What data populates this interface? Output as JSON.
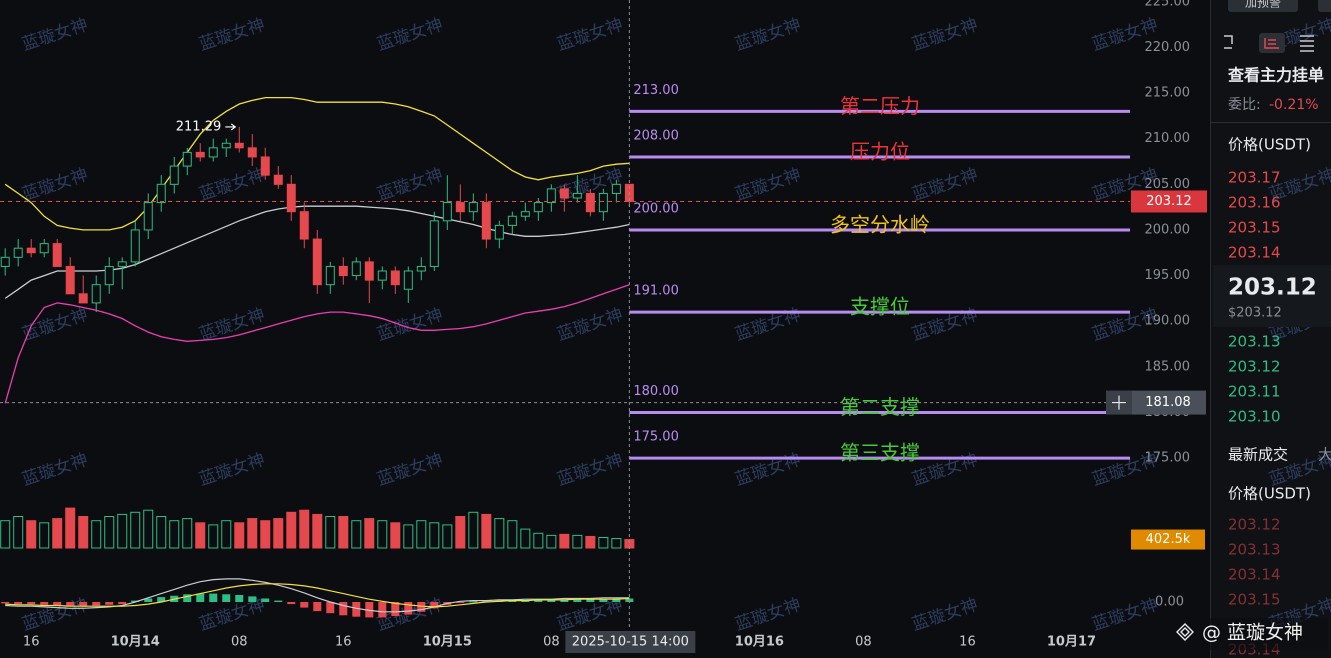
{
  "chart_data": {
    "type": "candlestick",
    "x": [
      -10,
      -9,
      -8,
      -7,
      -6,
      -5,
      -4,
      -3,
      -2,
      -1,
      0,
      1,
      2,
      3,
      4,
      5,
      6,
      7,
      8,
      9,
      10,
      11,
      12,
      13,
      14,
      15,
      16,
      17,
      18,
      19,
      20,
      21,
      22,
      23,
      24,
      25,
      26,
      27,
      28,
      29,
      30,
      31,
      32,
      33,
      34,
      35,
      36,
      37,
      38
    ],
    "open": [
      196,
      197,
      198,
      197.5,
      198.5,
      196,
      193,
      192,
      194,
      196,
      196.5,
      200,
      203,
      205,
      207,
      208.5,
      208,
      209,
      209.5,
      209,
      208,
      206,
      205,
      202,
      199,
      194,
      196,
      195,
      196.5,
      194.5,
      195.5,
      193.5,
      195.5,
      196,
      201,
      203,
      202,
      203,
      199,
      200.5,
      201.5,
      202,
      203,
      204.5,
      203.5,
      204,
      202,
      204,
      205
    ],
    "high": [
      198,
      199,
      199,
      199,
      199,
      197,
      195,
      195,
      197,
      197,
      201,
      204,
      206,
      208,
      209,
      209.5,
      210,
      210,
      211.29,
      210.5,
      209,
      207,
      206,
      203,
      200,
      196.5,
      197,
      197,
      197,
      196,
      196,
      196,
      197,
      202,
      206,
      205,
      204,
      204,
      201,
      202,
      203,
      203.5,
      205,
      205,
      206,
      204.5,
      204.5,
      205.5,
      205
    ],
    "low": [
      195,
      196,
      197,
      197,
      196,
      193,
      192,
      191,
      193,
      193.5,
      196,
      199,
      202,
      204,
      206,
      207.5,
      207.5,
      208,
      208.5,
      207,
      205.5,
      204.5,
      201,
      198,
      193,
      193,
      194,
      194.5,
      192,
      193.5,
      193,
      192,
      194.5,
      195.5,
      200,
      201,
      201,
      198,
      198,
      199.5,
      201,
      201,
      202,
      202,
      203,
      201.5,
      201,
      203,
      202.5
    ],
    "close": [
      197,
      198,
      197.5,
      198.5,
      196,
      193,
      192,
      194,
      196,
      196.5,
      200,
      203,
      205,
      207,
      208.5,
      208,
      209,
      209.5,
      209,
      208,
      206,
      205,
      202,
      199,
      194,
      196,
      195,
      196.5,
      194.5,
      195.5,
      194,
      195.5,
      196,
      201,
      203,
      202,
      203,
      199,
      200.5,
      201.5,
      202,
      203,
      204.5,
      203.5,
      204,
      202,
      204,
      205,
      203.12
    ],
    "bb_upper": [
      205,
      204,
      203,
      201.5,
      200.5,
      200.2,
      200,
      200,
      200,
      200.3,
      201,
      202.5,
      204.5,
      206.5,
      208.5,
      210.5,
      212,
      213,
      213.8,
      214.2,
      214.5,
      214.5,
      214.5,
      214.3,
      214,
      214,
      214,
      214,
      214,
      214,
      213.8,
      213.5,
      213,
      212.5,
      211.5,
      210.5,
      209.5,
      208.5,
      207.5,
      206.5,
      205.8,
      205.5,
      205.8,
      206,
      206.2,
      206.5,
      207,
      207.2,
      207.3
    ],
    "bb_middle": [
      192.5,
      193.5,
      194.5,
      195,
      195.5,
      195.5,
      195.5,
      195.5,
      195.6,
      195.8,
      196.2,
      196.8,
      197.4,
      198,
      198.6,
      199.2,
      199.8,
      200.4,
      201,
      201.5,
      202,
      202.3,
      202.5,
      202.6,
      202.6,
      202.6,
      202.6,
      202.6,
      202.5,
      202.4,
      202.3,
      202.1,
      201.8,
      201.5,
      201.2,
      200.9,
      200.6,
      200.2,
      199.8,
      199.5,
      199.3,
      199.3,
      199.4,
      199.5,
      199.7,
      199.9,
      200.1,
      200.3,
      200.6
    ],
    "bb_lower": [
      181,
      186,
      189.5,
      191.5,
      192,
      191.8,
      191.5,
      191.2,
      190.8,
      190.3,
      189.5,
      188.8,
      188.3,
      188,
      187.8,
      187.9,
      188,
      188.2,
      188.5,
      188.9,
      189.3,
      189.7,
      190.1,
      190.5,
      190.8,
      191,
      191,
      190.8,
      190.6,
      190.3,
      189.8,
      189.3,
      189,
      189,
      189.1,
      189.2,
      189.4,
      189.7,
      190.1,
      190.5,
      190.9,
      191.1,
      191.3,
      191.6,
      192,
      192.5,
      193,
      193.5,
      194
    ],
    "volume": [
      1300000,
      1500000,
      1300000,
      1200000,
      1400000,
      1900000,
      1500000,
      1300000,
      1500000,
      1600000,
      1700000,
      1800000,
      1500000,
      1300000,
      1400000,
      1200000,
      1100000,
      1300000,
      1200000,
      1400000,
      1300000,
      1400000,
      1700000,
      1800000,
      1600000,
      1500000,
      1500000,
      1300000,
      1400000,
      1300000,
      1200000,
      1100000,
      1300000,
      1200000,
      1100000,
      1500000,
      1700000,
      1600000,
      1400000,
      1300000,
      900000,
      700000,
      600000,
      650000,
      600000,
      550000,
      500000,
      450000,
      402500
    ],
    "volume_last_label": "402.5k",
    "volume_ylim": [
      0,
      2000000
    ],
    "macd_hist": [
      -0.2,
      -0.3,
      -0.3,
      -0.4,
      -0.5,
      -0.6,
      -0.6,
      -0.5,
      -0.4,
      -0.3,
      0.2,
      0.5,
      0.7,
      0.9,
      1.1,
      1.2,
      1.2,
      1.1,
      1.0,
      0.8,
      0.5,
      0.2,
      -0.3,
      -0.8,
      -1.3,
      -1.6,
      -1.9,
      -2.1,
      -2.2,
      -2.2,
      -2.0,
      -1.8,
      -1.4,
      -0.9,
      -0.4,
      -0.1,
      0.1,
      0.1,
      0.2,
      0.2,
      0.3,
      0.3,
      0.3,
      0.3,
      0.4,
      0.4,
      0.4,
      0.5,
      0.5
    ],
    "macd_dif": [
      -0.5,
      -0.6,
      -0.6,
      -0.7,
      -0.8,
      -0.9,
      -0.9,
      -0.8,
      -0.7,
      -0.5,
      0,
      0.6,
      1.2,
      1.8,
      2.4,
      2.9,
      3.2,
      3.3,
      3.3,
      3.1,
      2.8,
      2.4,
      1.9,
      1.3,
      0.6,
      0,
      -0.5,
      -0.9,
      -1.2,
      -1.4,
      -1.4,
      -1.3,
      -1.1,
      -0.7,
      -0.2,
      0.1,
      0.2,
      0.2,
      0.3,
      0.3,
      0.4,
      0.4,
      0.4,
      0.5,
      0.5,
      0.5,
      0.6,
      0.6,
      0.6
    ],
    "macd_dea": [
      -0.3,
      -0.4,
      -0.4,
      -0.5,
      -0.5,
      -0.6,
      -0.6,
      -0.6,
      -0.6,
      -0.6,
      -0.5,
      -0.3,
      0,
      0.4,
      0.8,
      1.2,
      1.6,
      2,
      2.3,
      2.5,
      2.6,
      2.6,
      2.5,
      2.3,
      2,
      1.6,
      1.2,
      0.8,
      0.4,
      0.1,
      -0.2,
      -0.4,
      -0.6,
      -0.7,
      -0.6,
      -0.4,
      -0.2,
      0,
      0.1,
      0.2,
      0.2,
      0.3,
      0.3,
      0.3,
      0.4,
      0.4,
      0.4,
      0.4,
      0.5
    ],
    "macd_ylim": [
      -4,
      4
    ],
    "macd_yticks": [
      {
        "value": 0,
        "label": "0.00"
      }
    ],
    "up_color": "#2ebd85",
    "down_color": "#e5484d",
    "xlim": [
      -10.4,
      76.5
    ],
    "xticks": [
      {
        "value": -8,
        "label": "16"
      },
      {
        "value": 0,
        "label": "10月14"
      },
      {
        "value": 8,
        "label": "08"
      },
      {
        "value": 16,
        "label": "16"
      },
      {
        "value": 24,
        "label": "10月15"
      },
      {
        "value": 32,
        "label": "08"
      },
      {
        "value": 48,
        "label": "10月16"
      },
      {
        "value": 56,
        "label": "08"
      },
      {
        "value": 64,
        "label": "16"
      },
      {
        "value": 72,
        "label": "10月17"
      }
    ],
    "ylim": [
      171.5,
      225.2
    ],
    "yticks": [
      {
        "value": 175,
        "label": "175.00"
      },
      {
        "value": 180,
        "label": "180.00"
      },
      {
        "value": 185,
        "label": "185.00"
      },
      {
        "value": 190,
        "label": "190.00"
      },
      {
        "value": 195,
        "label": "195.00"
      },
      {
        "value": 200,
        "label": "200.00"
      },
      {
        "value": 205,
        "label": "205.00"
      },
      {
        "value": 210,
        "label": "210.00"
      },
      {
        "value": 215,
        "label": "215.00"
      },
      {
        "value": 220,
        "label": "220.00"
      },
      {
        "value": 225,
        "label": "225.00"
      }
    ],
    "grid": false,
    "max_label": 211.29,
    "crosshair": {
      "x": {
        "value": 38,
        "label": "2025-10-15 14:00"
      },
      "y": 181.08
    },
    "levels": {
      "values": [
        213,
        208,
        200,
        191,
        180,
        175
      ],
      "value_labels": [
        "213.00",
        "208.00",
        "200.00",
        "191.00",
        "180.00",
        "175.00"
      ],
      "labels": [
        "第二压力",
        "压力位",
        "多空分水岭",
        "支撑位",
        "第二支撑",
        "第三支撑"
      ],
      "label_colors": [
        "#f0333a",
        "#f0333a",
        "#f2c318",
        "#46c93a",
        "#46c93a",
        "#46c93a"
      ],
      "color": "#b98cf2"
    }
  },
  "watermark": "蓝璇女神",
  "signature": "@ 蓝璇女神",
  "order_book": {
    "button": "加预警",
    "title": "查看主力挂单",
    "ratio_label": "委比:",
    "ratio": "-0.21%",
    "price_header": "价格(USDT)",
    "asks": [
      "203.17",
      "203.16",
      "203.15",
      "203.14"
    ],
    "last": "203.12",
    "last_usd": "$203.12",
    "bids": [
      "203.13",
      "203.12",
      "203.11",
      "203.10"
    ],
    "trades_title": "最新成交",
    "trades_tab": "大",
    "trades_header": "价格(USDT)",
    "trades": [
      "203.12",
      "203.13",
      "203.14",
      "203.15",
      "203.14"
    ]
  }
}
